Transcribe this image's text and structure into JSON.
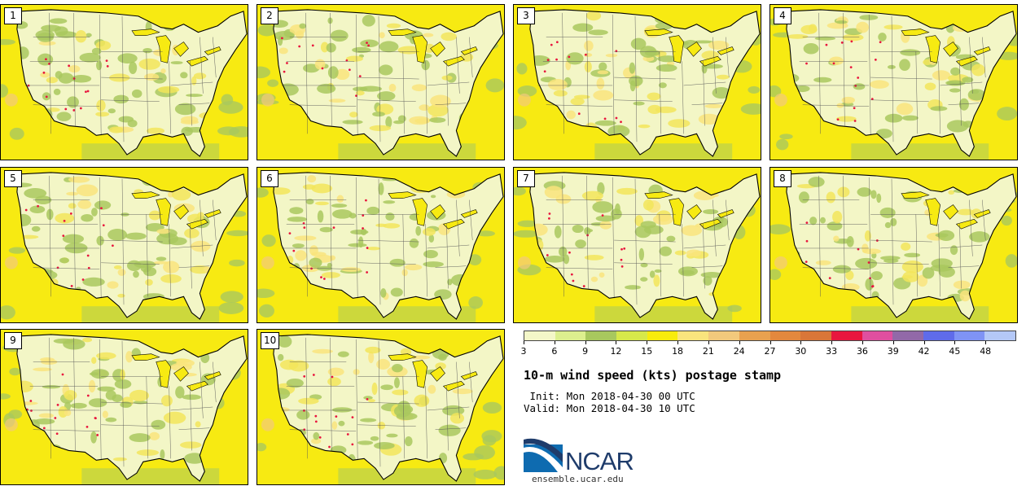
{
  "members": [
    "1",
    "2",
    "3",
    "4",
    "5",
    "6",
    "7",
    "8",
    "9",
    "10"
  ],
  "colorbar": {
    "colors": [
      "#f4f7c8",
      "#dcef8e",
      "#a8c85e",
      "#d7e84a",
      "#f8ec0c",
      "#f9e47d",
      "#f2c97c",
      "#e8a14f",
      "#e3883d",
      "#d97638",
      "#e8163e",
      "#df4f9f",
      "#9269a8",
      "#5f6bea",
      "#7f93f5",
      "#b4c8f7"
    ],
    "ticks": [
      "3",
      "6",
      "9",
      "12",
      "15",
      "18",
      "21",
      "24",
      "27",
      "30",
      "33",
      "36",
      "39",
      "42",
      "45",
      "48"
    ]
  },
  "title": "10-m wind speed (kts) postage stamp",
  "init_text": " Init: Mon 2018-04-30 00 UTC",
  "valid_text": "Valid: Mon 2018-04-30 10 UTC",
  "logo_text": "NCAR",
  "site": "ensemble.ucar.edu"
}
